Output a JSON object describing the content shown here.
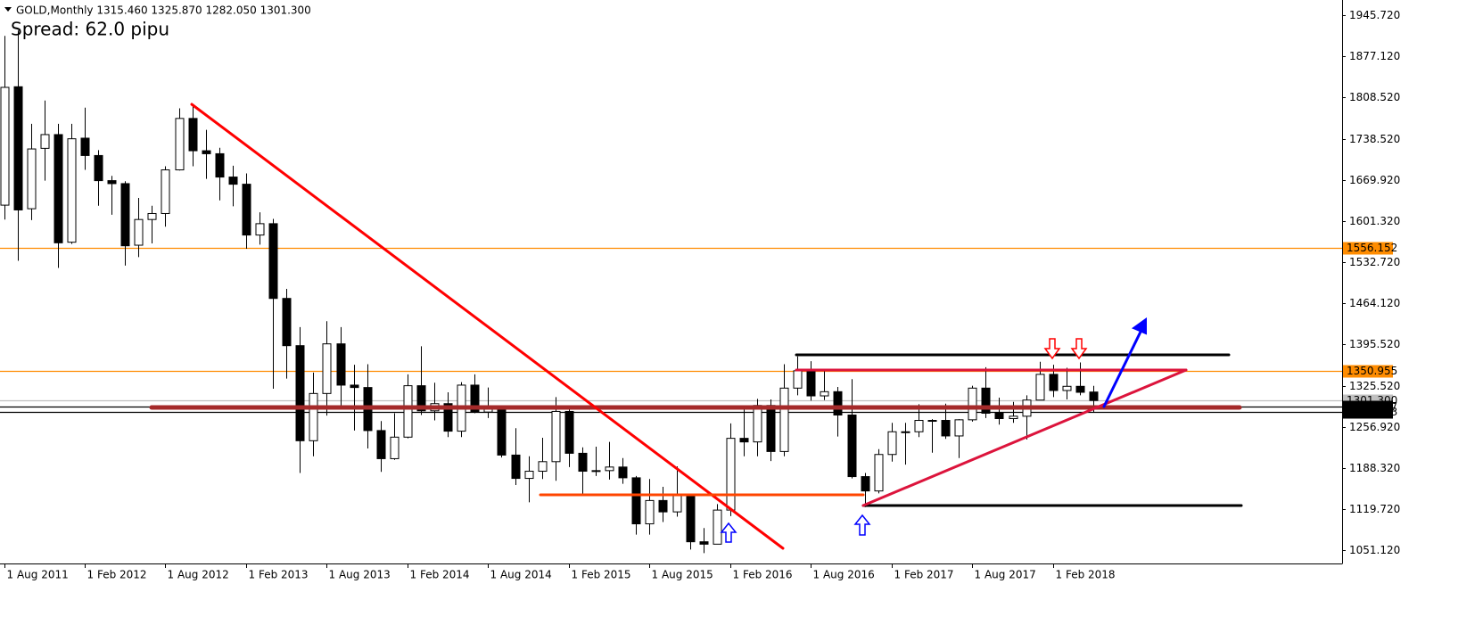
{
  "chart_data": {
    "type": "candlestick",
    "header": "GOLD,Monthly  1315.460 1325.870 1282.050 1301.300",
    "annotation": "Spread: 62.0 pipu",
    "categories": [
      "1 Aug 2011",
      null,
      null,
      null,
      null,
      null,
      "1 Feb 2012",
      null,
      null,
      null,
      null,
      null,
      "1 Aug 2012",
      null,
      null,
      null,
      null,
      null,
      "1 Feb 2013",
      null,
      null,
      null,
      null,
      null,
      "1 Aug 2013",
      null,
      null,
      null,
      null,
      null,
      "1 Feb 2014",
      null,
      null,
      null,
      null,
      null,
      "1 Aug 2014",
      null,
      null,
      null,
      null,
      null,
      "1 Feb 2015",
      null,
      null,
      null,
      null,
      null,
      "1 Aug 2015",
      null,
      null,
      null,
      null,
      null,
      "1 Feb 2016",
      null,
      null,
      null,
      null,
      null,
      "1 Aug 2016",
      null,
      null,
      null,
      null,
      null,
      "1 Feb 2017",
      null,
      null,
      null,
      null,
      null,
      "1 Aug 2017",
      null,
      null,
      null,
      null,
      null,
      "1 Feb 2018",
      null,
      null,
      null
    ],
    "open": [
      1628,
      1826,
      1622,
      1723,
      1746,
      1566,
      1740,
      1711,
      1669,
      1664,
      1561,
      1604,
      1614,
      1687,
      1773,
      1719,
      1714,
      1675,
      1663,
      1578,
      1597,
      1472,
      1393,
      1234,
      1313,
      1396,
      1327,
      1323,
      1251,
      1204,
      1240,
      1326,
      1284,
      1296,
      1250,
      1327,
      1282,
      1287,
      1210,
      1171,
      1183,
      1199,
      1283,
      1213,
      1183,
      1184,
      1190,
      1172,
      1095,
      1134,
      1115,
      1142,
      1065,
      1061,
      1118,
      1238,
      1232,
      1293,
      1216,
      1322,
      1351,
      1309,
      1316,
      1277,
      1174,
      1150,
      1211,
      1249,
      1249,
      1268,
      1268,
      1242,
      1269,
      1322,
      1280,
      1271,
      1275,
      1302,
      1345,
      1318,
      1325,
      1315.46
    ],
    "high": [
      1911,
      1920,
      1764,
      1803,
      1764,
      1764,
      1791,
      1720,
      1677,
      1668,
      1640,
      1627,
      1693,
      1790,
      1796,
      1754,
      1724,
      1694,
      1681,
      1616,
      1605,
      1488,
      1424,
      1348,
      1434,
      1424,
      1361,
      1362,
      1267,
      1280,
      1345,
      1392,
      1331,
      1315,
      1332,
      1345,
      1323,
      1292,
      1255,
      1208,
      1239,
      1307,
      1289,
      1223,
      1224,
      1232,
      1205,
      1175,
      1170,
      1157,
      1191,
      1142,
      1088,
      1128,
      1263,
      1287,
      1304,
      1303,
      1362,
      1375,
      1367,
      1352,
      1324,
      1337,
      1180,
      1220,
      1264,
      1264,
      1295,
      1270,
      1296,
      1270,
      1326,
      1357,
      1306,
      1299,
      1310,
      1366,
      1361,
      1356,
      1365,
      1325.87
    ],
    "low": [
      1604,
      1535,
      1603,
      1669,
      1523,
      1563,
      1687,
      1627,
      1612,
      1527,
      1541,
      1564,
      1592,
      1686,
      1693,
      1672,
      1636,
      1626,
      1555,
      1562,
      1321,
      1338,
      1180,
      1208,
      1276,
      1292,
      1251,
      1221,
      1182,
      1202,
      1238,
      1277,
      1268,
      1240,
      1240,
      1280,
      1272,
      1206,
      1160,
      1131,
      1170,
      1167,
      1190,
      1142,
      1175,
      1169,
      1162,
      1077,
      1077,
      1098,
      1107,
      1052,
      1046,
      1061,
      1108,
      1208,
      1208,
      1200,
      1208,
      1310,
      1301,
      1302,
      1241,
      1171,
      1123,
      1146,
      1199,
      1194,
      1240,
      1214,
      1237,
      1205,
      1266,
      1272,
      1261,
      1264,
      1236,
      1302,
      1307,
      1303,
      1310,
      1282.05
    ],
    "close": [
      1825,
      1620,
      1722,
      1746,
      1565,
      1739,
      1711,
      1669,
      1664,
      1560,
      1604,
      1614,
      1687,
      1773,
      1719,
      1714,
      1675,
      1663,
      1578,
      1597,
      1472,
      1393,
      1234,
      1313,
      1396,
      1327,
      1323,
      1251,
      1204,
      1240,
      1326,
      1284,
      1296,
      1250,
      1327,
      1282,
      1287,
      1210,
      1171,
      1183,
      1199,
      1283,
      1213,
      1183,
      1184,
      1190,
      1172,
      1095,
      1134,
      1115,
      1142,
      1065,
      1061,
      1118,
      1238,
      1232,
      1293,
      1216,
      1322,
      1351,
      1309,
      1316,
      1277,
      1174,
      1150,
      1211,
      1249,
      1249,
      1268,
      1268,
      1242,
      1269,
      1322,
      1280,
      1271,
      1275,
      1302,
      1345,
      1318,
      1325,
      1315,
      1301.3
    ],
    "up_color": "#ffffff",
    "down_color": "#000000",
    "ylim": [
      1028.7,
      1971.1
    ],
    "yticks": [
      {
        "value": 1945.72,
        "label": "1945.720"
      },
      {
        "value": 1877.12,
        "label": "1877.120"
      },
      {
        "value": 1808.52,
        "label": "1808.520"
      },
      {
        "value": 1738.52,
        "label": "1738.520"
      },
      {
        "value": 1669.92,
        "label": "1669.920"
      },
      {
        "value": 1601.32,
        "label": "1601.320"
      },
      {
        "value": 1532.72,
        "label": "1532.720"
      },
      {
        "value": 1464.12,
        "label": "1464.120"
      },
      {
        "value": 1395.52,
        "label": "1395.520"
      },
      {
        "value": 1325.52,
        "label": "1325.520"
      },
      {
        "value": 1256.92,
        "label": "1256.920"
      },
      {
        "value": 1188.32,
        "label": "1188.320"
      },
      {
        "value": 1119.72,
        "label": "1119.720"
      },
      {
        "value": 1051.12,
        "label": "1051.120"
      }
    ],
    "levels": [
      {
        "price": 1556.152,
        "color": "#ff8c00"
      },
      {
        "price": 1350.955,
        "color": "#ff8c00"
      },
      {
        "price": {
          "value": 1301.3,
          "label": "1301.300"
        },
        "color": "#c0c0c0"
      },
      {
        "price": 1291.347,
        "color": "#000000"
      },
      {
        "price": 1282.053,
        "color": "#000000"
      }
    ]
  }
}
